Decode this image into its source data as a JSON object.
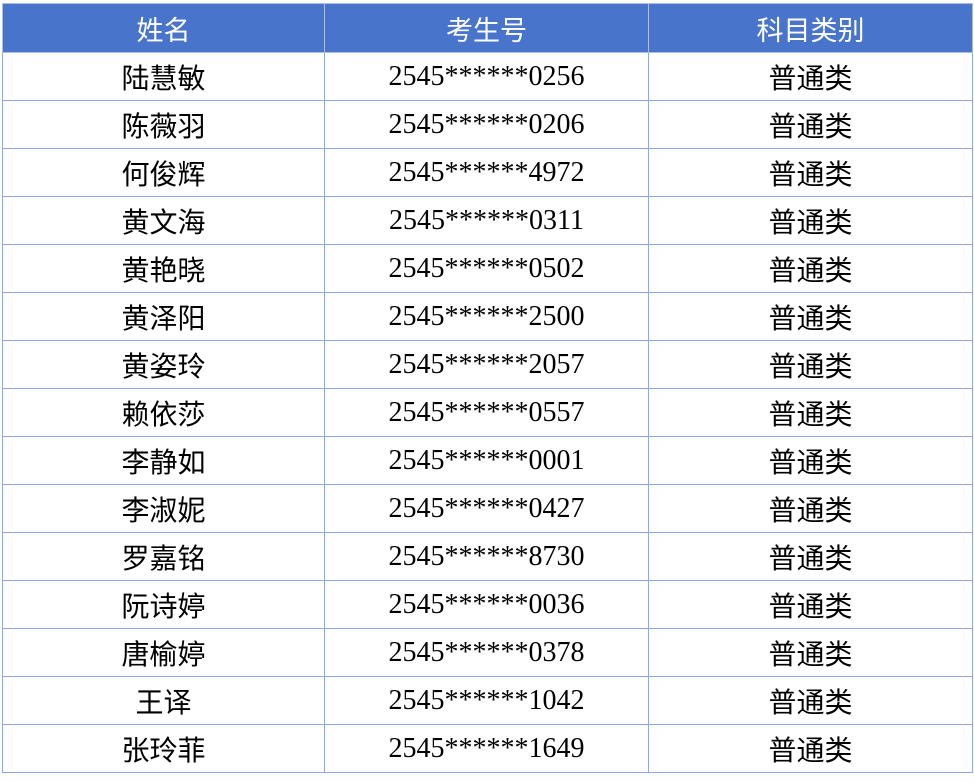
{
  "table": {
    "headers": [
      "姓名",
      "考生号",
      "科目类别"
    ],
    "rows": [
      [
        "陆慧敏",
        "2545******0256",
        "普通类"
      ],
      [
        "陈薇羽",
        "2545******0206",
        "普通类"
      ],
      [
        "何俊辉",
        "2545******4972",
        "普通类"
      ],
      [
        "黄文海",
        "2545******0311",
        "普通类"
      ],
      [
        "黄艳晓",
        "2545******0502",
        "普通类"
      ],
      [
        "黄泽阳",
        "2545******2500",
        "普通类"
      ],
      [
        "黄姿玲",
        "2545******2057",
        "普通类"
      ],
      [
        "赖依莎",
        "2545******0557",
        "普通类"
      ],
      [
        "李静如",
        "2545******0001",
        "普通类"
      ],
      [
        "李淑妮",
        "2545******0427",
        "普通类"
      ],
      [
        "罗嘉铭",
        "2545******8730",
        "普通类"
      ],
      [
        "阮诗婷",
        "2545******0036",
        "普通类"
      ],
      [
        "唐榆婷",
        "2545******0378",
        "普通类"
      ],
      [
        "王译",
        "2545******1042",
        "普通类"
      ],
      [
        "张玲菲",
        "2545******1649",
        "普通类"
      ]
    ]
  },
  "colors": {
    "header_bg": "#4874cb",
    "header_text": "#ffffff",
    "border": "#8eaadc"
  }
}
